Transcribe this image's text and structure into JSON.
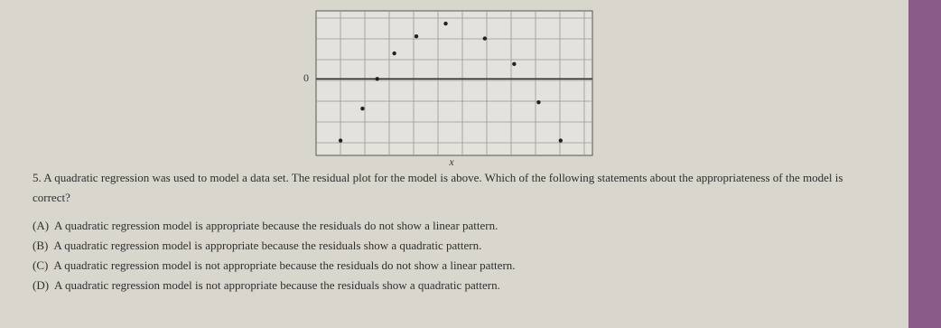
{
  "chart_data": {
    "type": "scatter",
    "xlabel": "x",
    "x": [
      1.0,
      1.9,
      2.5,
      3.2,
      4.1,
      5.3,
      6.9,
      8.1,
      9.1,
      10.0
    ],
    "values": [
      -2.9,
      -1.4,
      0,
      1.2,
      2.0,
      2.6,
      1.9,
      0.7,
      -1.1,
      -2.9
    ],
    "xlim": [
      0,
      11.3
    ],
    "ylim": [
      -3.6,
      3.2
    ],
    "yticks": [
      0
    ],
    "grid": true,
    "color": "#222222"
  },
  "question": {
    "number": "5.",
    "text": "A quadratic regression was used to model a data set.  The residual plot for the model is above.  Which of the following statements about the appropriateness of the model is correct?",
    "options": [
      {
        "letter": "(A)",
        "text": "A quadratic regression model is appropriate because the residuals do not show a linear pattern."
      },
      {
        "letter": "(B)",
        "text": "A quadratic regression model is appropriate because the residuals show a quadratic pattern."
      },
      {
        "letter": "(C)",
        "text": "A quadratic regression model is not appropriate because the residuals do not show a linear pattern."
      },
      {
        "letter": "(D)",
        "text": "A quadratic regression model is not appropriate because the residuals show a quadratic pattern."
      }
    ]
  }
}
